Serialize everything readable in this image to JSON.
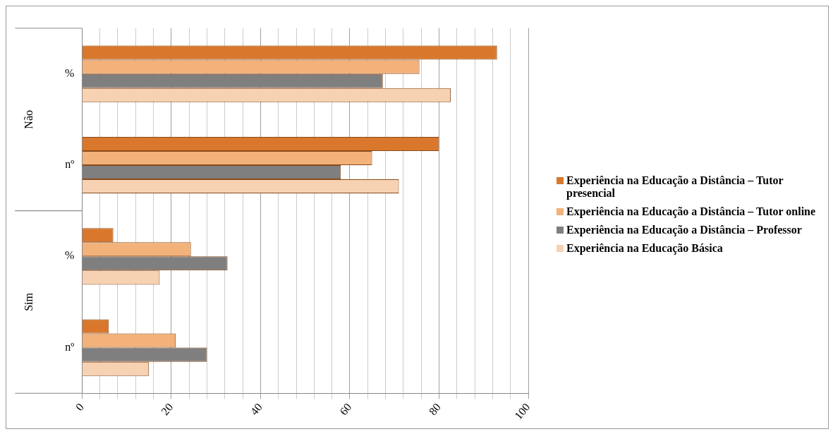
{
  "chart_data": {
    "type": "bar",
    "orientation": "horizontal",
    "categories": [
      "%",
      "nº",
      "%",
      "nº"
    ],
    "annotations": [
      "Não",
      "Sim"
    ],
    "series": [
      {
        "name": "Experiência na Educação a Distância – Tutor presencial",
        "color": "#d9782d",
        "values": [
          93,
          80,
          7,
          6
        ]
      },
      {
        "name": "Experiência na Educação a Distância – Tutor online",
        "color": "#f2b27a",
        "values": [
          75.6,
          65,
          24.4,
          21
        ]
      },
      {
        "name": "Experiência na Educação a Distância – Professor",
        "color": "#7f7f7f",
        "values": [
          67.4,
          58,
          32.6,
          28
        ]
      },
      {
        "name": "Experiência na Educação Básica",
        "color": "#f6d2b2",
        "values": [
          82.6,
          71,
          17.4,
          15
        ]
      }
    ],
    "xlim": [
      0,
      100
    ],
    "xticks": [
      0,
      {
        "value": 4,
        "label": null
      },
      {
        "value": 8,
        "label": null
      },
      {
        "value": 12,
        "label": null
      },
      {
        "value": 16,
        "label": null
      },
      20,
      {
        "value": 24,
        "label": null
      },
      {
        "value": 28,
        "label": null
      },
      {
        "value": 32,
        "label": null
      },
      {
        "value": 36,
        "label": null
      },
      40,
      {
        "value": 44,
        "label": null
      },
      {
        "value": 48,
        "label": null
      },
      {
        "value": 52,
        "label": null
      },
      {
        "value": 56,
        "label": null
      },
      60,
      {
        "value": 64,
        "label": null
      },
      {
        "value": 68,
        "label": null
      },
      {
        "value": 72,
        "label": null
      },
      {
        "value": 76,
        "label": null
      },
      80,
      {
        "value": 84,
        "label": null
      },
      {
        "value": 88,
        "label": null
      },
      {
        "value": 92,
        "label": null
      },
      {
        "value": 96,
        "label": null
      },
      100
    ],
    "grid": "x",
    "legend": "right"
  }
}
